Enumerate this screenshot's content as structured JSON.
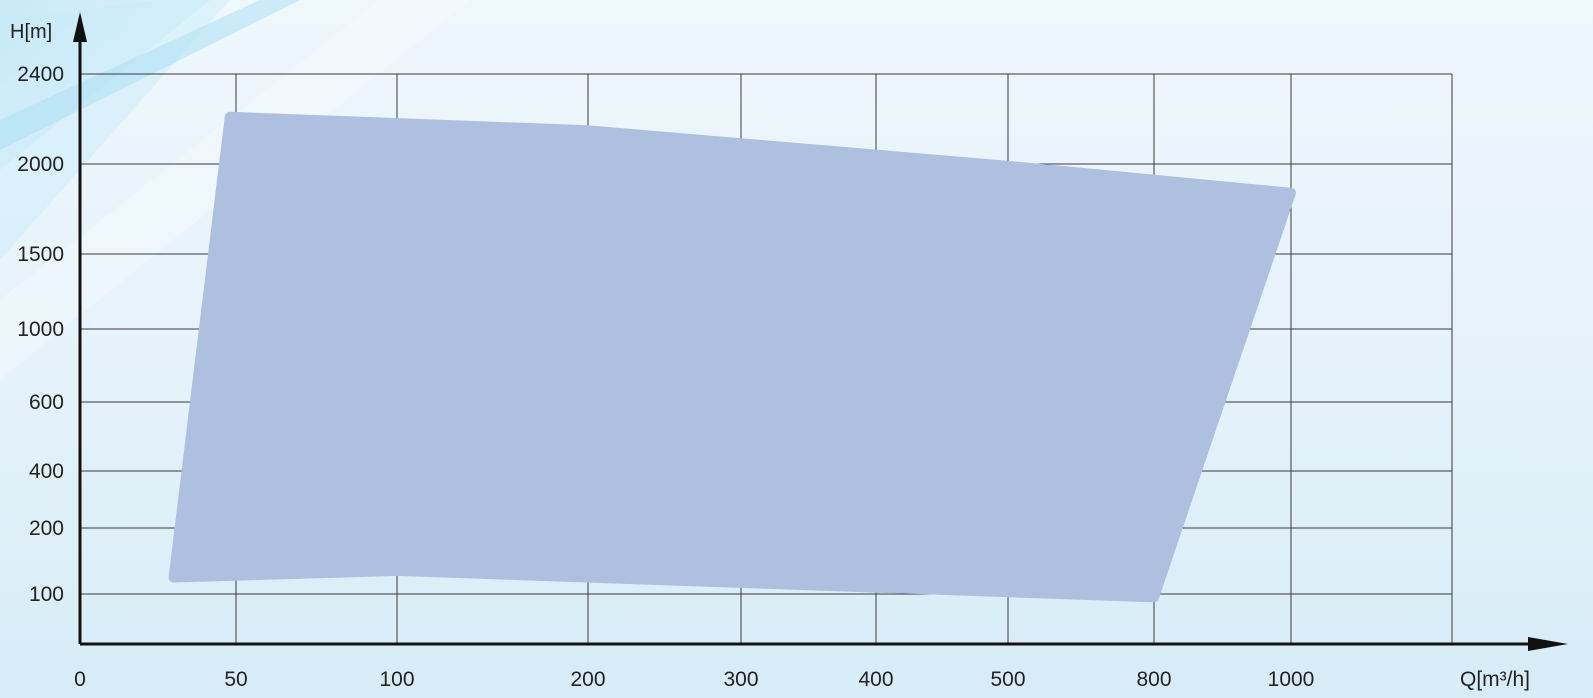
{
  "chart_data": {
    "type": "area",
    "title": "",
    "xlabel": "Q[m³/h]",
    "ylabel": "H[m]",
    "x_scale": "categorical (non-linear tick spacing)",
    "y_scale": "non-linear (tick spacing compressed at low values)",
    "x_ticks": [
      "0",
      "50",
      "100",
      "200",
      "300",
      "400",
      "500",
      "800",
      "1000"
    ],
    "y_ticks": [
      "100",
      "200",
      "400",
      "600",
      "1000",
      "1500",
      "2000",
      "2400"
    ],
    "grid": true,
    "legend": "none",
    "series": [
      {
        "color": "#aebfdf",
        "region_boundary": [
          {
            "q": 30,
            "h": 125
          },
          {
            "q": 48,
            "h": 2210
          },
          {
            "q": 200,
            "h": 2150
          },
          {
            "q": 500,
            "h": 1990
          },
          {
            "q": 1000,
            "h": 1840
          },
          {
            "q": 800,
            "h": 95
          },
          {
            "q": 100,
            "h": 135
          }
        ]
      }
    ]
  },
  "colors": {
    "background_top": "#eef7fc",
    "background_bottom": "#d7ecf7",
    "grid": "#3a3a3a",
    "axis": "#111111",
    "region": "#aebfdf"
  }
}
